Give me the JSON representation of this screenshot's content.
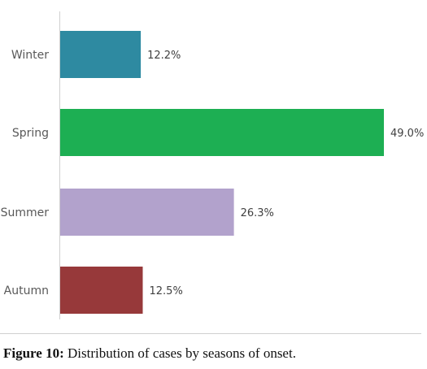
{
  "chart_data": {
    "type": "bar",
    "orientation": "horizontal",
    "categories": [
      "Winter",
      "Spring",
      "Summer",
      "Autumn"
    ],
    "values": [
      12.2,
      49.0,
      26.3,
      12.5
    ],
    "value_labels": [
      "12.2%",
      "49.0%",
      "26.3%",
      "12.5%"
    ],
    "colors": [
      "#2e8aa1",
      "#1daf53",
      "#b2a2cc",
      "#97393a"
    ],
    "xlim": [
      0,
      55
    ],
    "grid": false,
    "legend": "none"
  },
  "caption": {
    "label": "Figure 10:",
    "text": " Distribution of cases by seasons of onset."
  }
}
